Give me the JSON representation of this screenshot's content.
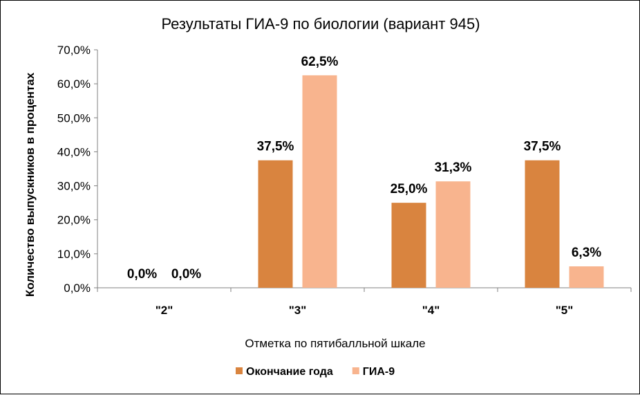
{
  "chart_data": {
    "type": "bar",
    "title": "Результаты ГИА-9 по биологии (вариант 945)",
    "xlabel": "Отметка по пятибалльной шкале",
    "ylabel": "Количество выпускников в процентах",
    "categories": [
      "\"2\"",
      "\"3\"",
      "\"4\"",
      "\"5\""
    ],
    "series": [
      {
        "name": "Окончание года",
        "values": [
          0.0,
          37.5,
          25.0,
          37.5
        ],
        "labels": [
          "0,0%",
          "37,5%",
          "25,0%",
          "37,5%"
        ],
        "color": "#D9843F"
      },
      {
        "name": "ГИА-9",
        "values": [
          0.0,
          62.5,
          31.3,
          6.3
        ],
        "labels": [
          "0,0%",
          "62,5%",
          "31,3%",
          "6,3%"
        ],
        "color": "#F8B48E"
      }
    ],
    "ylim": [
      0,
      70
    ],
    "yticks": [
      "0,0%",
      "10,0%",
      "20,0%",
      "30,0%",
      "40,0%",
      "50,0%",
      "60,0%",
      "70,0%"
    ],
    "grid": false,
    "legend": "bottom"
  }
}
